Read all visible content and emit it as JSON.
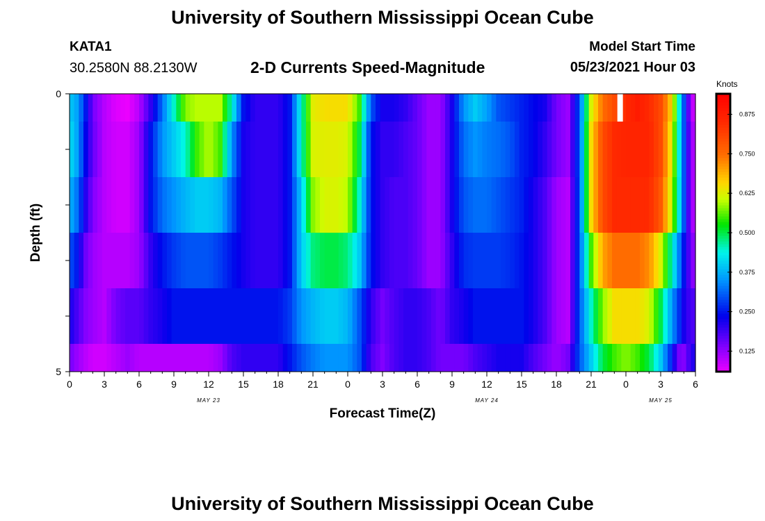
{
  "header": {
    "title": "University of Southern Mississippi Ocean Cube",
    "station": "KATA1",
    "coords": "30.2580N  88.2130W",
    "subtitle": "2-D Currents Speed-Magnitude",
    "model_label": "Model Start Time",
    "model_time": "05/23/2021 Hour 03"
  },
  "footer": {
    "title": "University of Southern Mississippi Ocean Cube"
  },
  "chart_data": {
    "type": "heatmap",
    "title": "2-D Currents Speed-Magnitude",
    "xlabel": "Forecast Time(Z)",
    "ylabel": "Depth (ft)",
    "units_label": "Knots",
    "x_tick_labels": [
      "0",
      "3",
      "6",
      "9",
      "12",
      "15",
      "18",
      "21",
      "0",
      "3",
      "6",
      "9",
      "12",
      "15",
      "18",
      "21",
      "0",
      "3",
      "6"
    ],
    "date_labels": [
      {
        "label": "MAY 23",
        "hour": 12
      },
      {
        "label": "MAY 24",
        "hour": 36
      },
      {
        "label": "MAY 25",
        "hour": 51
      }
    ],
    "hour_range": [
      0,
      54
    ],
    "y_tick_labels": [
      "0",
      "5"
    ],
    "depth_range": [
      0,
      5
    ],
    "color_range": [
      0.06,
      0.94
    ],
    "colorbar_ticks": [
      "0.125",
      "0.250",
      "0.375",
      "0.500",
      "0.625",
      "0.750",
      "0.875"
    ],
    "colorbar_values": [
      0.125,
      0.25,
      0.375,
      0.5,
      0.625,
      0.75,
      0.875
    ],
    "depth_rows": [
      "0-0.5 ft",
      "0.5-1.5 ft",
      "1.5-2.5 ft",
      "2.5-3.5 ft",
      "3.5-4.5 ft",
      "4.5-5 ft"
    ],
    "profiles": [
      [
        [
          0,
          0.4
        ],
        [
          0.7,
          0.36
        ],
        [
          1.3,
          0.27
        ],
        [
          2,
          0.15
        ],
        [
          3,
          0.1
        ],
        [
          4,
          0.07
        ],
        [
          5,
          0.06
        ],
        [
          6,
          0.1
        ],
        [
          7,
          0.2
        ],
        [
          8,
          0.32
        ],
        [
          9,
          0.45
        ],
        [
          10,
          0.58
        ],
        [
          11,
          0.6
        ],
        [
          12,
          0.6
        ],
        [
          13,
          0.6
        ],
        [
          14,
          0.45
        ],
        [
          15,
          0.25
        ],
        [
          16,
          0.2
        ],
        [
          17,
          0.2
        ],
        [
          18,
          0.2
        ],
        [
          19,
          0.25
        ],
        [
          20,
          0.45
        ],
        [
          21,
          0.63
        ],
        [
          22,
          0.65
        ],
        [
          23,
          0.65
        ],
        [
          24,
          0.65
        ],
        [
          25,
          0.55
        ],
        [
          26,
          0.3
        ],
        [
          27,
          0.22
        ],
        [
          28,
          0.22
        ],
        [
          29,
          0.2
        ],
        [
          30,
          0.16
        ],
        [
          31,
          0.12
        ],
        [
          32,
          0.12
        ],
        [
          33,
          0.22
        ],
        [
          34,
          0.35
        ],
        [
          35,
          0.4
        ],
        [
          36,
          0.36
        ],
        [
          37,
          0.3
        ],
        [
          38,
          0.28
        ],
        [
          39,
          0.26
        ],
        [
          40,
          0.24
        ],
        [
          41,
          0.22
        ],
        [
          42,
          0.15
        ],
        [
          43,
          0.12
        ],
        [
          44,
          0.3
        ],
        [
          45,
          0.62
        ],
        [
          46,
          0.75
        ],
        [
          47,
          0.8
        ],
        [
          48,
          0.85
        ],
        [
          49,
          0.88
        ],
        [
          50,
          0.85
        ],
        [
          51,
          0.8
        ],
        [
          52,
          0.65
        ],
        [
          53,
          0.3
        ],
        [
          53.6,
          0.1
        ],
        [
          54,
          0.08
        ]
      ],
      [
        [
          0,
          0.42
        ],
        [
          0.7,
          0.36
        ],
        [
          1.3,
          0.25
        ],
        [
          2,
          0.16
        ],
        [
          3,
          0.1
        ],
        [
          4,
          0.08
        ],
        [
          5,
          0.08
        ],
        [
          6,
          0.12
        ],
        [
          7,
          0.25
        ],
        [
          8,
          0.35
        ],
        [
          9,
          0.4
        ],
        [
          10,
          0.45
        ],
        [
          11,
          0.55
        ],
        [
          12,
          0.6
        ],
        [
          13,
          0.55
        ],
        [
          14,
          0.35
        ],
        [
          15,
          0.22
        ],
        [
          16,
          0.2
        ],
        [
          17,
          0.2
        ],
        [
          18,
          0.2
        ],
        [
          19,
          0.25
        ],
        [
          20,
          0.45
        ],
        [
          21,
          0.62
        ],
        [
          22,
          0.63
        ],
        [
          23,
          0.63
        ],
        [
          24,
          0.62
        ],
        [
          25,
          0.5
        ],
        [
          26,
          0.25
        ],
        [
          27,
          0.2
        ],
        [
          28,
          0.2
        ],
        [
          29,
          0.18
        ],
        [
          30,
          0.16
        ],
        [
          31,
          0.12
        ],
        [
          32,
          0.12
        ],
        [
          33,
          0.22
        ],
        [
          34,
          0.32
        ],
        [
          35,
          0.35
        ],
        [
          36,
          0.33
        ],
        [
          37,
          0.32
        ],
        [
          38,
          0.3
        ],
        [
          39,
          0.26
        ],
        [
          40,
          0.24
        ],
        [
          41,
          0.2
        ],
        [
          42,
          0.15
        ],
        [
          43,
          0.12
        ],
        [
          44,
          0.3
        ],
        [
          45,
          0.65
        ],
        [
          46,
          0.8
        ],
        [
          47,
          0.85
        ],
        [
          48,
          0.86
        ],
        [
          49,
          0.86
        ],
        [
          50,
          0.86
        ],
        [
          51,
          0.8
        ],
        [
          52,
          0.62
        ],
        [
          53,
          0.3
        ],
        [
          53.6,
          0.12
        ],
        [
          54,
          0.1
        ]
      ],
      [
        [
          0,
          0.38
        ],
        [
          0.7,
          0.32
        ],
        [
          1.3,
          0.22
        ],
        [
          2,
          0.14
        ],
        [
          3,
          0.1
        ],
        [
          4,
          0.08
        ],
        [
          5,
          0.08
        ],
        [
          6,
          0.12
        ],
        [
          7,
          0.25
        ],
        [
          8,
          0.32
        ],
        [
          9,
          0.35
        ],
        [
          10,
          0.38
        ],
        [
          11,
          0.4
        ],
        [
          12,
          0.4
        ],
        [
          13,
          0.38
        ],
        [
          14,
          0.3
        ],
        [
          15,
          0.22
        ],
        [
          16,
          0.2
        ],
        [
          17,
          0.2
        ],
        [
          18,
          0.2
        ],
        [
          19,
          0.25
        ],
        [
          20,
          0.4
        ],
        [
          21,
          0.58
        ],
        [
          22,
          0.62
        ],
        [
          23,
          0.62
        ],
        [
          24,
          0.6
        ],
        [
          25,
          0.45
        ],
        [
          26,
          0.25
        ],
        [
          27,
          0.2
        ],
        [
          28,
          0.18
        ],
        [
          29,
          0.18
        ],
        [
          30,
          0.16
        ],
        [
          31,
          0.12
        ],
        [
          32,
          0.12
        ],
        [
          33,
          0.22
        ],
        [
          34,
          0.3
        ],
        [
          35,
          0.32
        ],
        [
          36,
          0.32
        ],
        [
          37,
          0.3
        ],
        [
          38,
          0.28
        ],
        [
          39,
          0.26
        ],
        [
          40,
          0.22
        ],
        [
          41,
          0.18
        ],
        [
          42,
          0.12
        ],
        [
          43,
          0.1
        ],
        [
          44,
          0.3
        ],
        [
          45,
          0.65
        ],
        [
          46,
          0.8
        ],
        [
          47,
          0.85
        ],
        [
          48,
          0.85
        ],
        [
          49,
          0.85
        ],
        [
          50,
          0.85
        ],
        [
          51,
          0.78
        ],
        [
          52,
          0.6
        ],
        [
          53,
          0.3
        ],
        [
          53.6,
          0.12
        ],
        [
          54,
          0.1
        ]
      ],
      [
        [
          0,
          0.3
        ],
        [
          0.7,
          0.25
        ],
        [
          1.3,
          0.16
        ],
        [
          2,
          0.12
        ],
        [
          3,
          0.1
        ],
        [
          4,
          0.1
        ],
        [
          5,
          0.1
        ],
        [
          6,
          0.12
        ],
        [
          7,
          0.2
        ],
        [
          8,
          0.25
        ],
        [
          9,
          0.28
        ],
        [
          10,
          0.3
        ],
        [
          11,
          0.3
        ],
        [
          12,
          0.3
        ],
        [
          13,
          0.28
        ],
        [
          14,
          0.25
        ],
        [
          15,
          0.22
        ],
        [
          16,
          0.2
        ],
        [
          17,
          0.2
        ],
        [
          18,
          0.2
        ],
        [
          19,
          0.25
        ],
        [
          20,
          0.4
        ],
        [
          21,
          0.48
        ],
        [
          22,
          0.5
        ],
        [
          23,
          0.5
        ],
        [
          24,
          0.48
        ],
        [
          25,
          0.4
        ],
        [
          26,
          0.25
        ],
        [
          27,
          0.2
        ],
        [
          28,
          0.18
        ],
        [
          29,
          0.18
        ],
        [
          30,
          0.16
        ],
        [
          31,
          0.12
        ],
        [
          32,
          0.12
        ],
        [
          33,
          0.2
        ],
        [
          34,
          0.27
        ],
        [
          35,
          0.28
        ],
        [
          36,
          0.28
        ],
        [
          37,
          0.28
        ],
        [
          38,
          0.27
        ],
        [
          39,
          0.25
        ],
        [
          40,
          0.22
        ],
        [
          41,
          0.18
        ],
        [
          42,
          0.12
        ],
        [
          43,
          0.1
        ],
        [
          44,
          0.3
        ],
        [
          45,
          0.55
        ],
        [
          46,
          0.7
        ],
        [
          47,
          0.75
        ],
        [
          48,
          0.75
        ],
        [
          49,
          0.75
        ],
        [
          50,
          0.72
        ],
        [
          51,
          0.62
        ],
        [
          52,
          0.45
        ],
        [
          53,
          0.25
        ],
        [
          53.6,
          0.15
        ],
        [
          54,
          0.12
        ]
      ],
      [
        [
          0,
          0.22
        ],
        [
          0.7,
          0.18
        ],
        [
          1.3,
          0.14
        ],
        [
          2,
          0.12
        ],
        [
          3,
          0.1
        ],
        [
          4,
          0.15
        ],
        [
          5,
          0.17
        ],
        [
          6,
          0.17
        ],
        [
          7,
          0.2
        ],
        [
          8,
          0.22
        ],
        [
          9,
          0.25
        ],
        [
          10,
          0.25
        ],
        [
          11,
          0.25
        ],
        [
          12,
          0.25
        ],
        [
          13,
          0.25
        ],
        [
          14,
          0.25
        ],
        [
          15,
          0.25
        ],
        [
          16,
          0.25
        ],
        [
          17,
          0.25
        ],
        [
          18,
          0.25
        ],
        [
          19,
          0.28
        ],
        [
          20,
          0.35
        ],
        [
          21,
          0.38
        ],
        [
          22,
          0.4
        ],
        [
          23,
          0.4
        ],
        [
          24,
          0.38
        ],
        [
          25,
          0.3
        ],
        [
          26,
          0.2
        ],
        [
          27,
          0.15
        ],
        [
          28,
          0.18
        ],
        [
          29,
          0.2
        ],
        [
          30,
          0.2
        ],
        [
          31,
          0.18
        ],
        [
          32,
          0.15
        ],
        [
          33,
          0.2
        ],
        [
          34,
          0.22
        ],
        [
          35,
          0.25
        ],
        [
          36,
          0.25
        ],
        [
          37,
          0.25
        ],
        [
          38,
          0.25
        ],
        [
          39,
          0.25
        ],
        [
          40,
          0.22
        ],
        [
          41,
          0.18
        ],
        [
          42,
          0.12
        ],
        [
          43,
          0.1
        ],
        [
          44,
          0.3
        ],
        [
          45,
          0.45
        ],
        [
          46,
          0.58
        ],
        [
          47,
          0.65
        ],
        [
          48,
          0.65
        ],
        [
          49,
          0.65
        ],
        [
          50,
          0.62
        ],
        [
          51,
          0.5
        ],
        [
          52,
          0.35
        ],
        [
          53,
          0.22
        ],
        [
          53.6,
          0.18
        ],
        [
          54,
          0.18
        ]
      ],
      [
        [
          0,
          0.15
        ],
        [
          0.7,
          0.12
        ],
        [
          1.3,
          0.1
        ],
        [
          2,
          0.08
        ],
        [
          3,
          0.08
        ],
        [
          4,
          0.1
        ],
        [
          5,
          0.12
        ],
        [
          6,
          0.1
        ],
        [
          7,
          0.1
        ],
        [
          8,
          0.1
        ],
        [
          9,
          0.1
        ],
        [
          10,
          0.1
        ],
        [
          11,
          0.1
        ],
        [
          12,
          0.1
        ],
        [
          13,
          0.12
        ],
        [
          14,
          0.18
        ],
        [
          15,
          0.2
        ],
        [
          16,
          0.2
        ],
        [
          17,
          0.2
        ],
        [
          18,
          0.2
        ],
        [
          19,
          0.25
        ],
        [
          20,
          0.3
        ],
        [
          21,
          0.33
        ],
        [
          22,
          0.35
        ],
        [
          23,
          0.35
        ],
        [
          24,
          0.35
        ],
        [
          25,
          0.3
        ],
        [
          26,
          0.18
        ],
        [
          27,
          0.14
        ],
        [
          28,
          0.18
        ],
        [
          29,
          0.2
        ],
        [
          30,
          0.2
        ],
        [
          31,
          0.18
        ],
        [
          32,
          0.15
        ],
        [
          33,
          0.15
        ],
        [
          34,
          0.15
        ],
        [
          35,
          0.18
        ],
        [
          36,
          0.2
        ],
        [
          37,
          0.22
        ],
        [
          38,
          0.22
        ],
        [
          39,
          0.22
        ],
        [
          40,
          0.18
        ],
        [
          41,
          0.15
        ],
        [
          42,
          0.12
        ],
        [
          43,
          0.15
        ],
        [
          44,
          0.3
        ],
        [
          45,
          0.4
        ],
        [
          46,
          0.5
        ],
        [
          47,
          0.55
        ],
        [
          48,
          0.58
        ],
        [
          49,
          0.55
        ],
        [
          50,
          0.5
        ],
        [
          51,
          0.4
        ],
        [
          52,
          0.25
        ],
        [
          52.5,
          0.15
        ],
        [
          53,
          0.14
        ],
        [
          53.6,
          0.2
        ],
        [
          54,
          0.22
        ]
      ]
    ],
    "missing_cells": [
      {
        "row": 0,
        "hour": 47.5
      }
    ]
  }
}
